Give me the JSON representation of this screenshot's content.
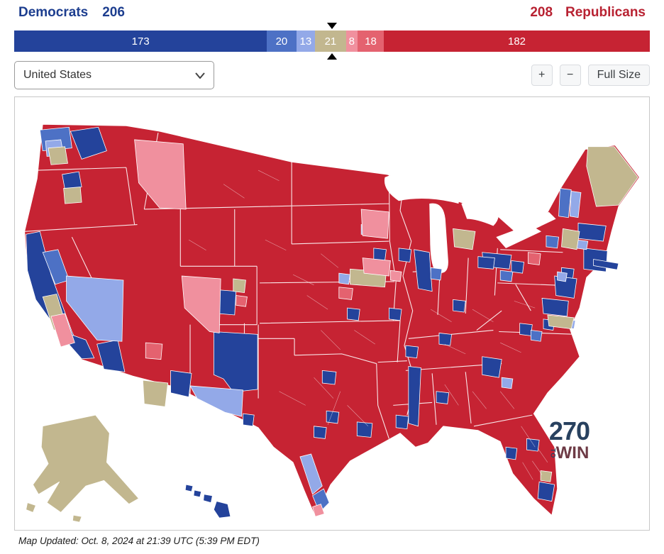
{
  "header": {
    "democrats_label": "Democrats",
    "democrats_seats": "206",
    "republicans_seats": "208",
    "republicans_label": "Republicans"
  },
  "seat_bar": {
    "segments": [
      {
        "name": "safe-dem",
        "seats": 173,
        "label": "173",
        "color": "#24439b"
      },
      {
        "name": "likely-dem",
        "seats": 20,
        "label": "20",
        "color": "#4d71c5"
      },
      {
        "name": "lean-dem",
        "seats": 13,
        "label": "13",
        "color": "#93a9e8"
      },
      {
        "name": "tossup",
        "seats": 21,
        "label": "21",
        "color": "#c2b78f"
      },
      {
        "name": "lean-rep",
        "seats": 8,
        "label": "8",
        "color": "#f0909e"
      },
      {
        "name": "likely-rep",
        "seats": 18,
        "label": "18",
        "color": "#e4626f"
      },
      {
        "name": "safe-rep",
        "seats": 182,
        "label": "182",
        "color": "#c62333"
      }
    ]
  },
  "controls": {
    "region_value": "United States",
    "zoom_in": "+",
    "zoom_out": "−",
    "full_size": "Full Size"
  },
  "map": {
    "logo_270": "270",
    "logo_to": "TO",
    "logo_win": "WIN"
  },
  "footer": {
    "map_updated": "Map Updated: Oct. 8, 2024 at 21:39 UTC (5:39 PM EDT)"
  },
  "colors": {
    "democrat_header": "#1d3e8f",
    "republican_header": "#b82232",
    "safe_dem": "#24439b",
    "likely_dem": "#4d71c5",
    "lean_dem": "#93a9e8",
    "tossup": "#c2b78f",
    "lean_rep": "#f0909e",
    "likely_rep": "#e4626f",
    "safe_rep": "#c62333",
    "majority_marker": "#000000"
  }
}
